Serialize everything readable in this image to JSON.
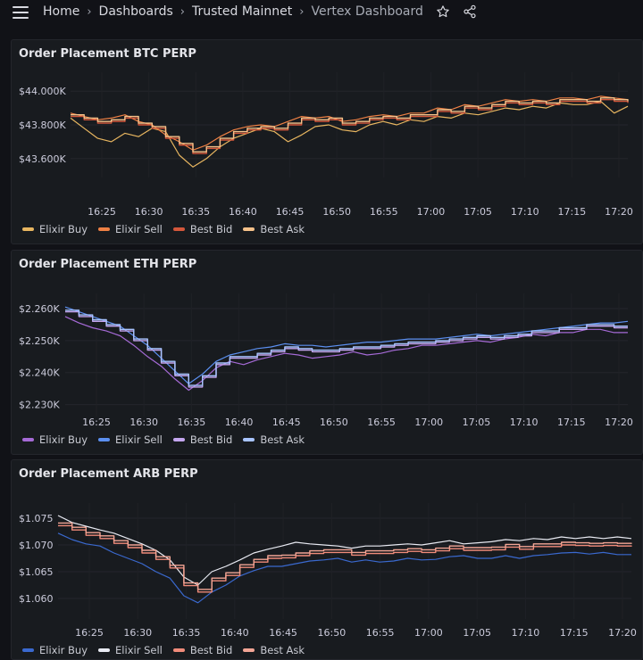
{
  "nav": {
    "breadcrumbs": [
      "Home",
      "Dashboards",
      "Trusted Mainnet",
      "Vertex Dashboard"
    ],
    "icons": [
      "menu-icon",
      "star-icon",
      "share-icon"
    ]
  },
  "colors": {
    "background": "#111217",
    "panel": "#181b1f",
    "btc": {
      "buy": "#e8b660",
      "sell": "#ee8044",
      "bid": "#d4573b",
      "ask": "#f6c28a"
    },
    "eth": {
      "buy": "#a56ad6",
      "sell": "#5b8ff0",
      "bid": "#c4a6ef",
      "ask": "#a8c4ff"
    },
    "arb": {
      "buy": "#3a69cf",
      "sell": "#e8eaf2",
      "bid": "#f08b7a",
      "ask": "#f2a595"
    }
  },
  "chart_data": [
    {
      "type": "line",
      "title": "Order Placement BTC PERP",
      "x_ticks": [
        "16:25",
        "16:30",
        "16:35",
        "16:40",
        "16:45",
        "16:50",
        "16:55",
        "17:00",
        "17:05",
        "17:10",
        "17:15",
        "17:20"
      ],
      "y_ticks": [
        "$44.000K",
        "$43.800K",
        "$43.600K"
      ],
      "ylim": [
        43.53,
        44.07
      ],
      "series": [
        {
          "name": "Elixir Buy",
          "values": [
            43.84,
            43.78,
            43.72,
            43.7,
            43.75,
            43.73,
            43.78,
            43.76,
            43.62,
            43.55,
            43.6,
            43.67,
            43.72,
            43.75,
            43.78,
            43.76,
            43.7,
            43.74,
            43.79,
            43.8,
            43.77,
            43.76,
            43.8,
            43.82,
            43.8,
            43.83,
            43.82,
            43.85,
            43.84,
            43.87,
            43.86,
            43.88,
            43.9,
            43.89,
            43.91,
            43.9,
            43.93,
            43.92,
            43.92,
            43.94,
            43.87,
            43.91
          ]
        },
        {
          "name": "Elixir Sell",
          "values": [
            43.87,
            43.85,
            43.83,
            43.84,
            43.86,
            43.82,
            43.8,
            43.74,
            43.7,
            43.65,
            43.68,
            43.73,
            43.77,
            43.79,
            43.8,
            43.79,
            43.82,
            43.85,
            43.84,
            43.85,
            43.82,
            43.83,
            43.85,
            43.86,
            43.85,
            43.87,
            43.87,
            43.9,
            43.89,
            43.92,
            43.91,
            43.93,
            43.95,
            43.94,
            43.95,
            43.94,
            43.96,
            43.96,
            43.95,
            43.97,
            43.96,
            43.95
          ]
        },
        {
          "name": "Best Bid",
          "values": [
            43.85,
            43.83,
            43.81,
            43.82,
            43.84,
            43.8,
            43.78,
            43.72,
            43.68,
            43.63,
            43.66,
            43.71,
            43.75,
            43.77,
            43.78,
            43.77,
            43.8,
            43.83,
            43.82,
            43.83,
            43.8,
            43.81,
            43.83,
            43.84,
            43.83,
            43.85,
            43.85,
            43.88,
            43.87,
            43.9,
            43.89,
            43.91,
            43.93,
            43.92,
            43.93,
            43.92,
            43.94,
            43.94,
            43.93,
            43.95,
            43.94,
            43.93
          ]
        },
        {
          "name": "Best Ask",
          "values": [
            43.86,
            43.84,
            43.82,
            43.83,
            43.85,
            43.81,
            43.79,
            43.73,
            43.69,
            43.64,
            43.67,
            43.72,
            43.76,
            43.78,
            43.79,
            43.78,
            43.81,
            43.84,
            43.83,
            43.84,
            43.81,
            43.82,
            43.84,
            43.85,
            43.84,
            43.86,
            43.86,
            43.89,
            43.88,
            43.91,
            43.9,
            43.92,
            43.94,
            43.93,
            43.94,
            43.93,
            43.95,
            43.95,
            43.94,
            43.96,
            43.95,
            43.94
          ]
        }
      ]
    },
    {
      "type": "line",
      "title": "Order Placement ETH PERP",
      "x_ticks": [
        "16:25",
        "16:30",
        "16:35",
        "16:40",
        "16:45",
        "16:50",
        "16:55",
        "17:00",
        "17:05",
        "17:10",
        "17:15",
        "17:20"
      ],
      "y_ticks": [
        "$2.260K",
        "$2.250K",
        "$2.240K",
        "$2.230K"
      ],
      "ylim": [
        2.2285,
        2.2625
      ],
      "series": [
        {
          "name": "Elixir Buy",
          "values": [
            2.2575,
            2.2555,
            2.254,
            2.253,
            2.2515,
            2.2485,
            2.245,
            2.242,
            2.238,
            2.2345,
            2.2375,
            2.2415,
            2.2435,
            2.2425,
            2.244,
            2.245,
            2.246,
            2.2455,
            2.2445,
            2.245,
            2.2455,
            2.2465,
            2.2455,
            2.246,
            2.247,
            2.2475,
            2.2485,
            2.2485,
            2.249,
            2.2495,
            2.25,
            2.2495,
            2.2505,
            2.251,
            2.252,
            2.2515,
            2.2525,
            2.2525,
            2.2535,
            2.2535,
            2.2525,
            2.2525
          ]
        },
        {
          "name": "Elixir Sell",
          "values": [
            2.2605,
            2.259,
            2.2575,
            2.256,
            2.2545,
            2.2515,
            2.2485,
            2.2445,
            2.2405,
            2.2365,
            2.2395,
            2.2435,
            2.2455,
            2.2465,
            2.2475,
            2.248,
            2.249,
            2.2485,
            2.2485,
            2.248,
            2.2485,
            2.249,
            2.2495,
            2.2495,
            2.25,
            2.2505,
            2.2505,
            2.2505,
            2.251,
            2.2515,
            2.252,
            2.2515,
            2.252,
            2.2525,
            2.253,
            2.2535,
            2.254,
            2.2545,
            2.255,
            2.2555,
            2.2555,
            2.256
          ]
        },
        {
          "name": "Best Bid",
          "values": [
            2.259,
            2.2575,
            2.256,
            2.2545,
            2.253,
            2.25,
            2.247,
            2.243,
            2.239,
            2.2355,
            2.2385,
            2.2425,
            2.2445,
            2.2445,
            2.2455,
            2.2465,
            2.2475,
            2.247,
            2.2465,
            2.2465,
            2.247,
            2.2475,
            2.2475,
            2.248,
            2.2485,
            2.249,
            2.249,
            2.2495,
            2.25,
            2.2505,
            2.251,
            2.2505,
            2.251,
            2.2515,
            2.2525,
            2.2525,
            2.2535,
            2.2535,
            2.2545,
            2.2545,
            2.254,
            2.254
          ]
        },
        {
          "name": "Best Ask",
          "values": [
            2.2595,
            2.258,
            2.2565,
            2.255,
            2.2535,
            2.2505,
            2.2475,
            2.2435,
            2.2395,
            2.236,
            2.239,
            2.243,
            2.245,
            2.245,
            2.246,
            2.247,
            2.248,
            2.2475,
            2.247,
            2.247,
            2.2475,
            2.248,
            2.248,
            2.2485,
            2.249,
            2.2495,
            2.2495,
            2.25,
            2.2505,
            2.251,
            2.2515,
            2.251,
            2.2515,
            2.252,
            2.253,
            2.253,
            2.254,
            2.254,
            2.255,
            2.255,
            2.2545,
            2.2545
          ]
        }
      ]
    },
    {
      "type": "line",
      "title": "Order Placement ARB PERP",
      "x_ticks": [
        "16:25",
        "16:30",
        "16:35",
        "16:40",
        "16:45",
        "16:50",
        "16:55",
        "17:00",
        "17:05",
        "17:10",
        "17:15",
        "17:20"
      ],
      "y_ticks": [
        "$1.075",
        "$1.070",
        "$1.065",
        "$1.060"
      ],
      "ylim": [
        1.0575,
        1.0765
      ],
      "series": [
        {
          "name": "Elixir Buy",
          "values": [
            1.0722,
            1.071,
            1.0702,
            1.0698,
            1.0685,
            1.0675,
            1.0665,
            1.065,
            1.0638,
            1.0605,
            1.0592,
            1.0612,
            1.0625,
            1.0642,
            1.0652,
            1.066,
            1.066,
            1.0665,
            1.067,
            1.0672,
            1.0675,
            1.0668,
            1.0672,
            1.0668,
            1.067,
            1.0675,
            1.0672,
            1.0673,
            1.0678,
            1.068,
            1.0675,
            1.0675,
            1.068,
            1.0675,
            1.068,
            1.0682,
            1.0685,
            1.0686,
            1.0683,
            1.0686,
            1.0682,
            1.0682
          ]
        },
        {
          "name": "Elixir Sell",
          "values": [
            1.0755,
            1.0742,
            1.0735,
            1.0728,
            1.0722,
            1.0712,
            1.0702,
            1.069,
            1.0672,
            1.064,
            1.0625,
            1.065,
            1.066,
            1.0672,
            1.0685,
            1.0692,
            1.0698,
            1.0705,
            1.0702,
            1.07,
            1.0698,
            1.0694,
            1.0698,
            1.0698,
            1.07,
            1.0702,
            1.07,
            1.0704,
            1.0708,
            1.0702,
            1.0704,
            1.0706,
            1.071,
            1.0708,
            1.0712,
            1.071,
            1.0715,
            1.0712,
            1.0715,
            1.0712,
            1.0715,
            1.0712
          ]
        },
        {
          "name": "Best Bid",
          "values": [
            1.0736,
            1.0728,
            1.0718,
            1.0712,
            1.0703,
            1.0695,
            1.0685,
            1.0673,
            1.0657,
            1.0624,
            1.0612,
            1.0633,
            1.0643,
            1.0658,
            1.0668,
            1.0675,
            1.0676,
            1.068,
            1.0684,
            1.0686,
            1.0686,
            1.0681,
            1.0684,
            1.0684,
            1.0686,
            1.0688,
            1.0686,
            1.0689,
            1.0693,
            1.069,
            1.069,
            1.0691,
            1.0696,
            1.0692,
            1.0697,
            1.0697,
            1.07,
            1.0699,
            1.0698,
            1.0699,
            1.0698,
            1.0697
          ]
        },
        {
          "name": "Best Ask",
          "values": [
            1.0741,
            1.0733,
            1.0723,
            1.0717,
            1.0708,
            1.07,
            1.069,
            1.0678,
            1.0662,
            1.0629,
            1.0617,
            1.0638,
            1.0648,
            1.0663,
            1.0673,
            1.068,
            1.0681,
            1.0685,
            1.0689,
            1.0691,
            1.0691,
            1.0686,
            1.0689,
            1.0689,
            1.0691,
            1.0693,
            1.0691,
            1.0694,
            1.0698,
            1.0695,
            1.0695,
            1.0696,
            1.0701,
            1.0697,
            1.0702,
            1.0702,
            1.0705,
            1.0704,
            1.0703,
            1.0704,
            1.0703,
            1.0702
          ]
        }
      ]
    }
  ]
}
